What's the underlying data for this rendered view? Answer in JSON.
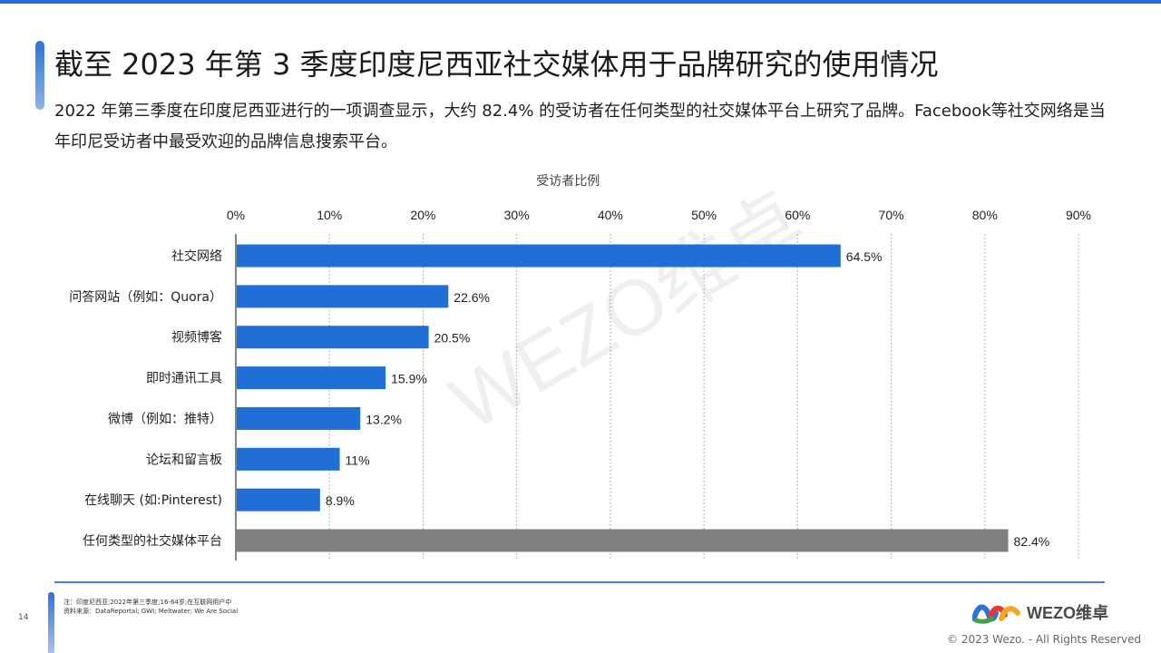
{
  "slide": {
    "title": "截至 2023 年第 3 季度印度尼西亚社交媒体用于品牌研究的使用情况",
    "subtitle": "2022 年第三季度在印度尼西亚进行的一项调查显示，大约 82.4% 的受访者在任何类型的社交媒体平台上研究了品牌。Facebook等社交网络是当年印尼受访者中最受欢迎的品牌信息搜索平台。",
    "watermark": "WEZO维卓",
    "page_number": "14",
    "notes": [
      "注：印度尼西亚;2022年第三季度;16-64岁;在互联网用户中",
      "资料来源：DataReportal; GWI; Meltwater; We Are Social"
    ],
    "logo_text": "WEZO维卓",
    "copyright": "© 2023 Wezo. - All Rights Reserved",
    "colors": {
      "accent": "#1f6fd6",
      "bar_primary": "#1f6fd6",
      "bar_total": "#808080"
    }
  },
  "chart_data": {
    "type": "bar",
    "orientation": "horizontal",
    "xlabel": "受访者比例",
    "x_axis_position": "top",
    "xlim": [
      0,
      90
    ],
    "xticks": [
      "0%",
      "10%",
      "20%",
      "30%",
      "40%",
      "50%",
      "60%",
      "70%",
      "80%",
      "90%"
    ],
    "grid": "vertical dotted",
    "categories": [
      "社交网络",
      "问答网站（例如：Quora）",
      "视频博客",
      "即时通讯工具",
      "微博（例如：推特）",
      "论坛和留言板",
      "在线聊天 (如:Pinterest)",
      "任何类型的社交媒体平台"
    ],
    "values": [
      64.5,
      22.6,
      20.5,
      15.9,
      13.2,
      11,
      8.9,
      82.4
    ],
    "value_labels": [
      "64.5%",
      "22.6%",
      "20.5%",
      "15.9%",
      "13.2%",
      "11%",
      "8.9%",
      "82.4%"
    ],
    "highlight_last": true
  }
}
